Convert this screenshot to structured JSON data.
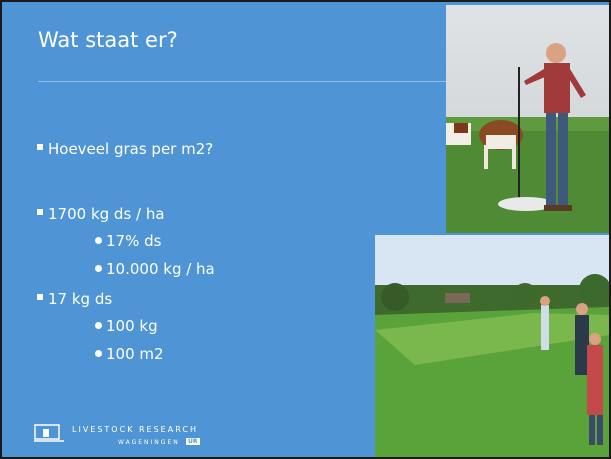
{
  "slide": {
    "title": "Wat staat er?",
    "bullets": [
      {
        "text": "Hoeveel gras per m2?",
        "subitems": []
      },
      {
        "text": "1700 kg ds / ha",
        "subitems": [
          "17% ds",
          "10.000 kg / ha"
        ]
      },
      {
        "text": "17 kg ds",
        "subitems": [
          "100 kg",
          "100 m2"
        ]
      }
    ],
    "logo": {
      "name": "LIVESTOCK RESEARCH",
      "org": "WAGENINGEN",
      "badge": "UR"
    }
  }
}
